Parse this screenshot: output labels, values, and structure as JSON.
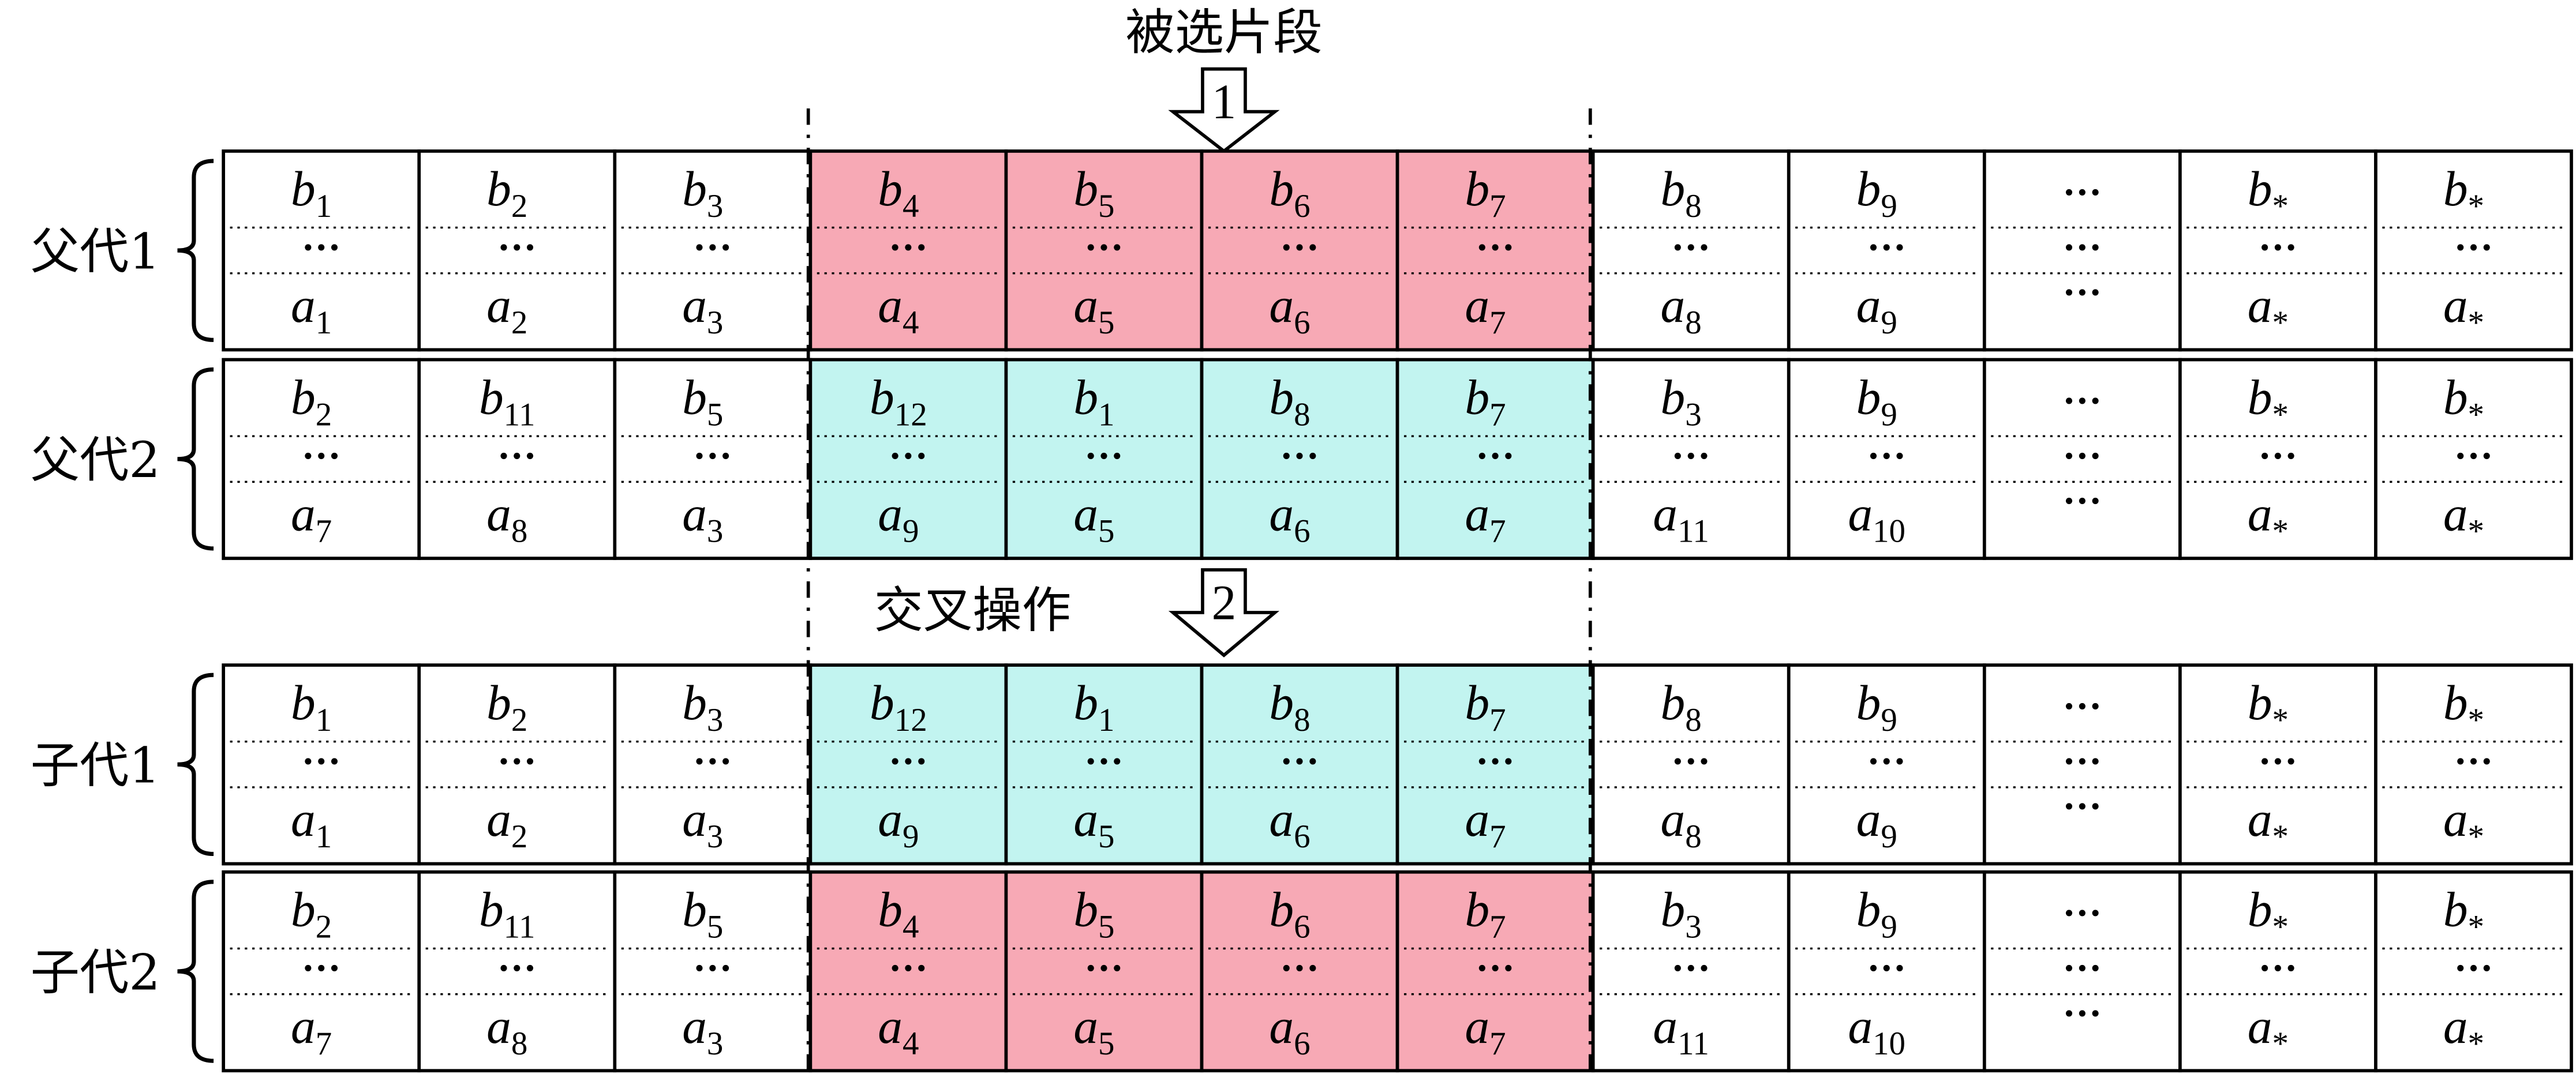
{
  "title_selected": "被选片段",
  "title_crossover": "交叉操作",
  "arrow1_label": "1",
  "arrow2_label": "2",
  "colors": {
    "pink": "#f7a9b5",
    "cyan": "#c2f4f0",
    "line": "#000000"
  },
  "ellipsis": "···",
  "rows": [
    {
      "label": "父代1",
      "highlight": "pink",
      "b": [
        "1",
        "2",
        "3",
        "4",
        "5",
        "6",
        "7",
        "8",
        "9",
        "···",
        "*",
        "*"
      ],
      "a": [
        "1",
        "2",
        "3",
        "4",
        "5",
        "6",
        "7",
        "8",
        "9",
        "···",
        "*",
        "*"
      ]
    },
    {
      "label": "父代2",
      "highlight": "cyan",
      "b": [
        "2",
        "11",
        "5",
        "12",
        "1",
        "8",
        "7",
        "3",
        "9",
        "···",
        "*",
        "*"
      ],
      "a": [
        "7",
        "8",
        "3",
        "9",
        "5",
        "6",
        "7",
        "11",
        "10",
        "···",
        "*",
        "*"
      ]
    },
    {
      "label": "子代1",
      "highlight": "cyan",
      "b": [
        "1",
        "2",
        "3",
        "12",
        "1",
        "8",
        "7",
        "8",
        "9",
        "···",
        "*",
        "*"
      ],
      "a": [
        "1",
        "2",
        "3",
        "9",
        "5",
        "6",
        "7",
        "8",
        "9",
        "···",
        "*",
        "*"
      ]
    },
    {
      "label": "子代2",
      "highlight": "pink",
      "b": [
        "2",
        "11",
        "5",
        "4",
        "5",
        "6",
        "7",
        "3",
        "9",
        "···",
        "*",
        "*"
      ],
      "a": [
        "7",
        "8",
        "3",
        "4",
        "5",
        "6",
        "7",
        "11",
        "10",
        "···",
        "*",
        "*"
      ]
    }
  ]
}
